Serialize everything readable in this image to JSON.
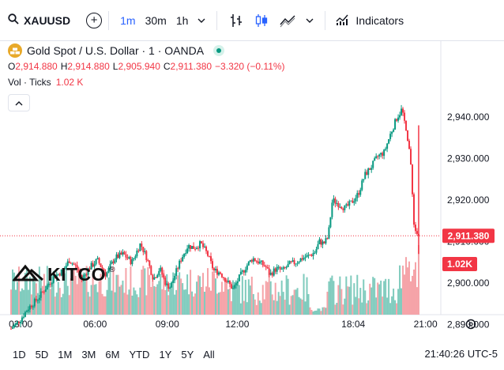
{
  "toolbar": {
    "symbol": "XAUUSD",
    "intervals": [
      "1m",
      "30m",
      "1h"
    ],
    "active_interval": "1m",
    "indicators_label": "Indicators"
  },
  "legend": {
    "title": "Gold Spot / U.S. Dollar · 1 · OANDA",
    "open_label": "O",
    "open": "2,914.880",
    "high_label": "H",
    "high": "2,914.880",
    "low_label": "L",
    "low": "2,905.940",
    "close_label": "C",
    "close": "2,911.380",
    "change": "−3.320 (−0.11%)",
    "vol_label": "Vol · Ticks",
    "vol_value": "1.02 K"
  },
  "logo": {
    "text": "KITCO",
    "mark": "®"
  },
  "bottom": {
    "ranges": [
      "1D",
      "5D",
      "1M",
      "3M",
      "6M",
      "YTD",
      "1Y",
      "5Y",
      "All"
    ],
    "clock": "21:40:26 UTC-5"
  },
  "colors": {
    "up": "#089981",
    "down": "#f23645",
    "accent": "#2962ff",
    "vol_up": "#7fcbbd",
    "vol_down": "#f5a3a8"
  },
  "chart_data": {
    "type": "candlestick",
    "instrument": "XAUUSD",
    "y_ticks": [
      2890,
      2900,
      2910,
      2920,
      2930,
      2940
    ],
    "y_tick_labels": [
      "2,890.000",
      "2,900.000",
      "2,910.000",
      "2,920.000",
      "2,930.000",
      "2,940.000"
    ],
    "y_range": [
      2885,
      2945
    ],
    "x_tick_labels": [
      "03:00",
      "06:00",
      "09:00",
      "12:00",
      "18:04",
      "21:00"
    ],
    "last_price": 2911.38,
    "last_price_label": "2,911.380",
    "last_volume_label": "1.02K",
    "price_path": [
      {
        "t": 0.0,
        "p": 2889.0
      },
      {
        "t": 0.02,
        "p": 2891.0
      },
      {
        "t": 0.04,
        "p": 2894.0
      },
      {
        "t": 0.06,
        "p": 2896.0
      },
      {
        "t": 0.085,
        "p": 2899.5
      },
      {
        "t": 0.1,
        "p": 2901.5
      },
      {
        "t": 0.12,
        "p": 2903.0
      },
      {
        "t": 0.135,
        "p": 2905.5
      },
      {
        "t": 0.15,
        "p": 2904.0
      },
      {
        "t": 0.165,
        "p": 2901.0
      },
      {
        "t": 0.18,
        "p": 2903.5
      },
      {
        "t": 0.2,
        "p": 2905.5
      },
      {
        "t": 0.22,
        "p": 2902.0
      },
      {
        "t": 0.24,
        "p": 2906.0
      },
      {
        "t": 0.26,
        "p": 2907.0
      },
      {
        "t": 0.28,
        "p": 2905.0
      },
      {
        "t": 0.3,
        "p": 2909.5
      },
      {
        "t": 0.315,
        "p": 2906.0
      },
      {
        "t": 0.33,
        "p": 2901.0
      },
      {
        "t": 0.345,
        "p": 2903.5
      },
      {
        "t": 0.36,
        "p": 2899.5
      },
      {
        "t": 0.37,
        "p": 2899.0
      },
      {
        "t": 0.38,
        "p": 2902.0
      },
      {
        "t": 0.395,
        "p": 2906.0
      },
      {
        "t": 0.41,
        "p": 2909.0
      },
      {
        "t": 0.425,
        "p": 2908.5
      },
      {
        "t": 0.44,
        "p": 2909.5
      },
      {
        "t": 0.455,
        "p": 2907.0
      },
      {
        "t": 0.47,
        "p": 2903.0
      },
      {
        "t": 0.485,
        "p": 2902.5
      },
      {
        "t": 0.5,
        "p": 2900.5
      },
      {
        "t": 0.515,
        "p": 2898.5
      },
      {
        "t": 0.53,
        "p": 2901.5
      },
      {
        "t": 0.545,
        "p": 2904.0
      },
      {
        "t": 0.56,
        "p": 2906.0
      },
      {
        "t": 0.575,
        "p": 2905.0
      },
      {
        "t": 0.59,
        "p": 2904.0
      },
      {
        "t": 0.6,
        "p": 2902.0
      },
      {
        "t": 0.615,
        "p": 2903.5
      },
      {
        "t": 0.63,
        "p": 2903.0
      },
      {
        "t": 0.645,
        "p": 2904.5
      },
      {
        "t": 0.66,
        "p": 2905.0
      },
      {
        "t": 0.675,
        "p": 2906.0
      },
      {
        "t": 0.69,
        "p": 2906.5
      },
      {
        "t": 0.705,
        "p": 2907.5
      },
      {
        "t": 0.715,
        "p": 2910.0
      },
      {
        "t": 0.725,
        "p": 2909.5
      },
      {
        "t": 0.735,
        "p": 2911.0
      },
      {
        "t": 0.745,
        "p": 2920.0
      },
      {
        "t": 0.76,
        "p": 2919.0
      },
      {
        "t": 0.775,
        "p": 2918.0
      },
      {
        "t": 0.79,
        "p": 2919.5
      },
      {
        "t": 0.805,
        "p": 2921.5
      },
      {
        "t": 0.82,
        "p": 2926.0
      },
      {
        "t": 0.835,
        "p": 2928.0
      },
      {
        "t": 0.85,
        "p": 2930.5
      },
      {
        "t": 0.865,
        "p": 2931.5
      },
      {
        "t": 0.88,
        "p": 2936.0
      },
      {
        "t": 0.895,
        "p": 2940.0
      },
      {
        "t": 0.905,
        "p": 2941.5
      },
      {
        "t": 0.915,
        "p": 2938.0
      },
      {
        "t": 0.925,
        "p": 2931.0
      },
      {
        "t": 0.935,
        "p": 2913.0
      },
      {
        "t": 0.945,
        "p": 2911.4
      }
    ]
  }
}
